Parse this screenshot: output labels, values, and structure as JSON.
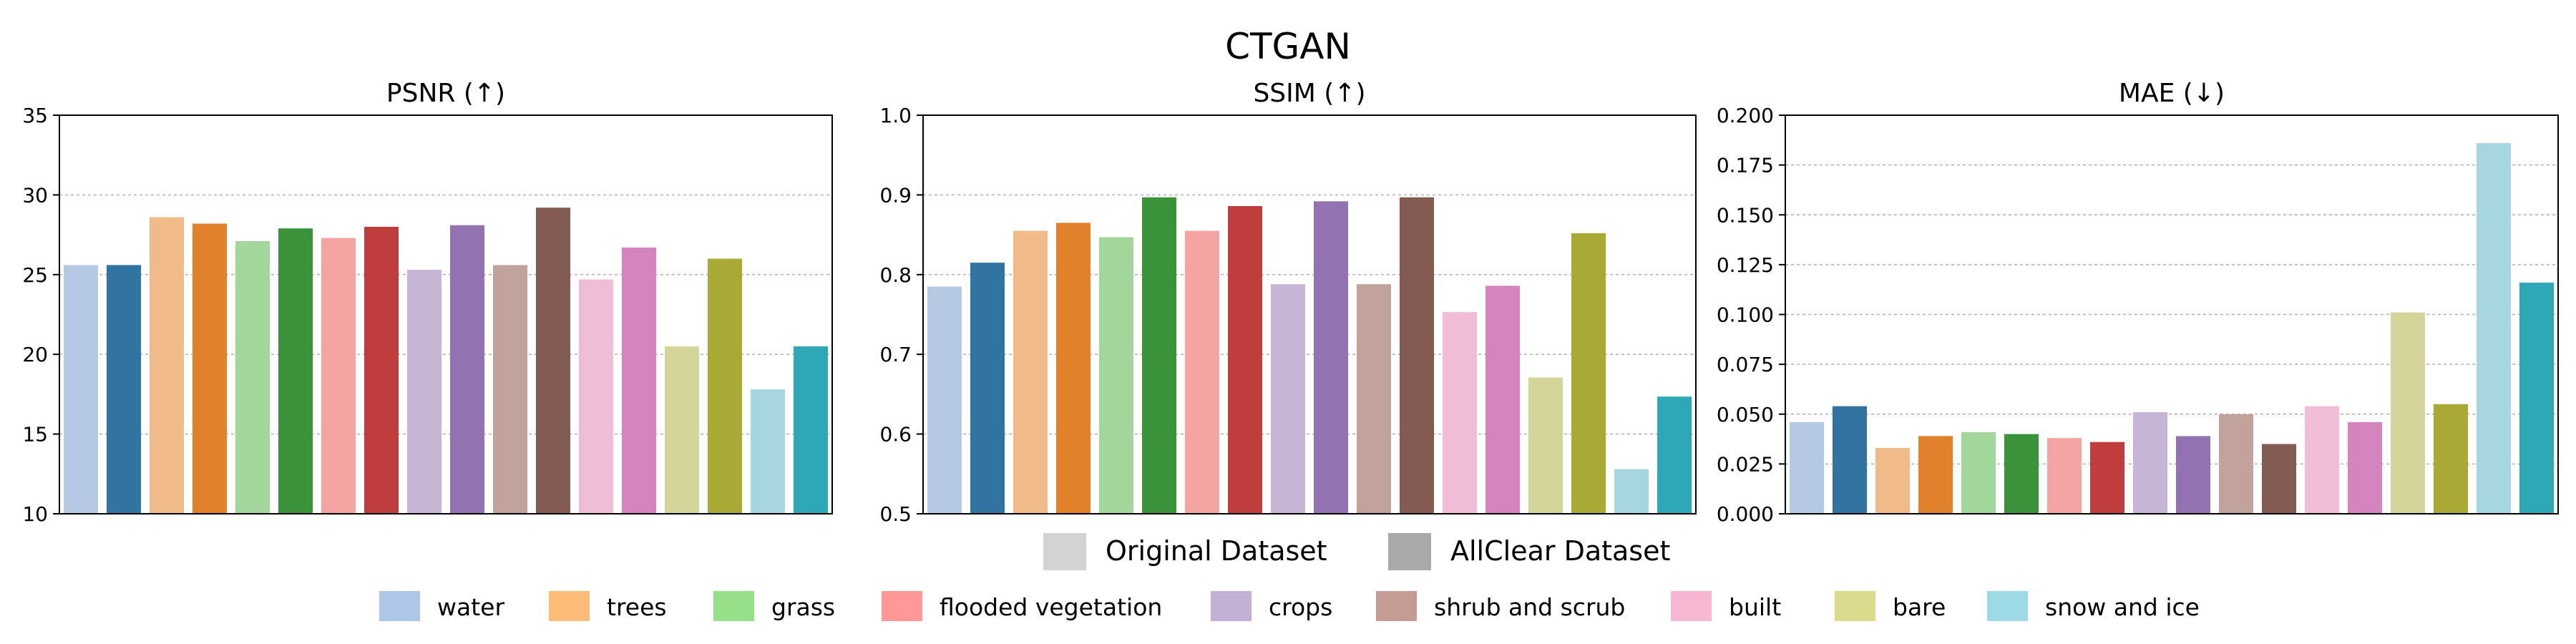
{
  "figure": {
    "title": "CTGAN"
  },
  "dataset_legend": [
    {
      "label": "Original Dataset",
      "color": "#d3d3d3"
    },
    {
      "label": "AllClear Dataset",
      "color": "#a9a9a9"
    }
  ],
  "class_legend": [
    {
      "label": "water",
      "color": "#aec7e8"
    },
    {
      "label": "trees",
      "color": "#ffbb78"
    },
    {
      "label": "grass",
      "color": "#98df8a"
    },
    {
      "label": "flooded vegetation",
      "color": "#ff9896"
    },
    {
      "label": "crops",
      "color": "#c5b0d5"
    },
    {
      "label": "shrub and scrub",
      "color": "#c49c94"
    },
    {
      "label": "built",
      "color": "#f7b6d2"
    },
    {
      "label": "bare",
      "color": "#dbdb8d"
    },
    {
      "label": "snow and ice",
      "color": "#9edae5"
    }
  ],
  "chart_data": [
    {
      "type": "bar",
      "title": "PSNR (↑)",
      "xlabel": "",
      "ylabel": "",
      "ylim": [
        10,
        35
      ],
      "yticks": [
        10,
        15,
        20,
        25,
        30,
        35
      ],
      "grid": "y",
      "categories": [
        "water",
        "trees",
        "grass",
        "flooded vegetation",
        "crops",
        "shrub and scrub",
        "built",
        "bare",
        "snow and ice"
      ],
      "series": [
        {
          "name": "Original Dataset",
          "values": [
            25.6,
            28.6,
            27.1,
            27.3,
            25.3,
            25.6,
            24.7,
            20.5,
            17.8
          ],
          "colors": [
            "#b5c9e4",
            "#f0bb89",
            "#a3d69a",
            "#f3a4a3",
            "#c6b5d4",
            "#c1a39c",
            "#f1bcd5",
            "#d4d59b",
            "#a6d7e0"
          ]
        },
        {
          "name": "AllClear Dataset",
          "values": [
            25.6,
            28.2,
            27.9,
            28.0,
            28.1,
            29.2,
            26.7,
            26.0,
            20.5
          ],
          "colors": [
            "#3274a1",
            "#e1812c",
            "#3a923a",
            "#c03d3e",
            "#9372b2",
            "#845b53",
            "#d684bd",
            "#a9aa35",
            "#2ea8b6"
          ]
        }
      ]
    },
    {
      "type": "bar",
      "title": "SSIM (↑)",
      "xlabel": "",
      "ylabel": "",
      "ylim": [
        0.5,
        1.0
      ],
      "yticks": [
        0.5,
        0.6,
        0.7,
        0.8,
        0.9,
        1.0
      ],
      "tick_decimals": 1,
      "grid": "y",
      "categories": [
        "water",
        "trees",
        "grass",
        "flooded vegetation",
        "crops",
        "shrub and scrub",
        "built",
        "bare",
        "snow and ice"
      ],
      "series": [
        {
          "name": "Original Dataset",
          "values": [
            0.785,
            0.855,
            0.847,
            0.855,
            0.788,
            0.788,
            0.753,
            0.671,
            0.556
          ],
          "colors": [
            "#b5c9e4",
            "#f0bb89",
            "#a3d69a",
            "#f3a4a3",
            "#c6b5d4",
            "#c1a39c",
            "#f1bcd5",
            "#d4d59b",
            "#a6d7e0"
          ]
        },
        {
          "name": "AllClear Dataset",
          "values": [
            0.815,
            0.865,
            0.897,
            0.886,
            0.892,
            0.897,
            0.786,
            0.852,
            0.647
          ],
          "colors": [
            "#3274a1",
            "#e1812c",
            "#3a923a",
            "#c03d3e",
            "#9372b2",
            "#845b53",
            "#d684bd",
            "#a9aa35",
            "#2ea8b6"
          ]
        }
      ]
    },
    {
      "type": "bar",
      "title": "MAE (↓)",
      "xlabel": "",
      "ylabel": "",
      "ylim": [
        0.0,
        0.2
      ],
      "yticks": [
        0.0,
        0.025,
        0.05,
        0.075,
        0.1,
        0.125,
        0.15,
        0.175,
        0.2
      ],
      "tick_decimals": 3,
      "grid": "y",
      "categories": [
        "water",
        "trees",
        "grass",
        "flooded vegetation",
        "crops",
        "shrub and scrub",
        "built",
        "bare",
        "snow and ice"
      ],
      "series": [
        {
          "name": "Original Dataset",
          "values": [
            0.046,
            0.033,
            0.041,
            0.038,
            0.051,
            0.05,
            0.054,
            0.101,
            0.186
          ],
          "colors": [
            "#b5c9e4",
            "#f0bb89",
            "#a3d69a",
            "#f3a4a3",
            "#c6b5d4",
            "#c1a39c",
            "#f1bcd5",
            "#d4d59b",
            "#a6d7e0"
          ]
        },
        {
          "name": "AllClear Dataset",
          "values": [
            0.054,
            0.039,
            0.04,
            0.036,
            0.039,
            0.035,
            0.046,
            0.055,
            0.116
          ],
          "colors": [
            "#3274a1",
            "#e1812c",
            "#3a923a",
            "#c03d3e",
            "#9372b2",
            "#845b53",
            "#d684bd",
            "#a9aa35",
            "#2ea8b6"
          ]
        }
      ]
    }
  ]
}
